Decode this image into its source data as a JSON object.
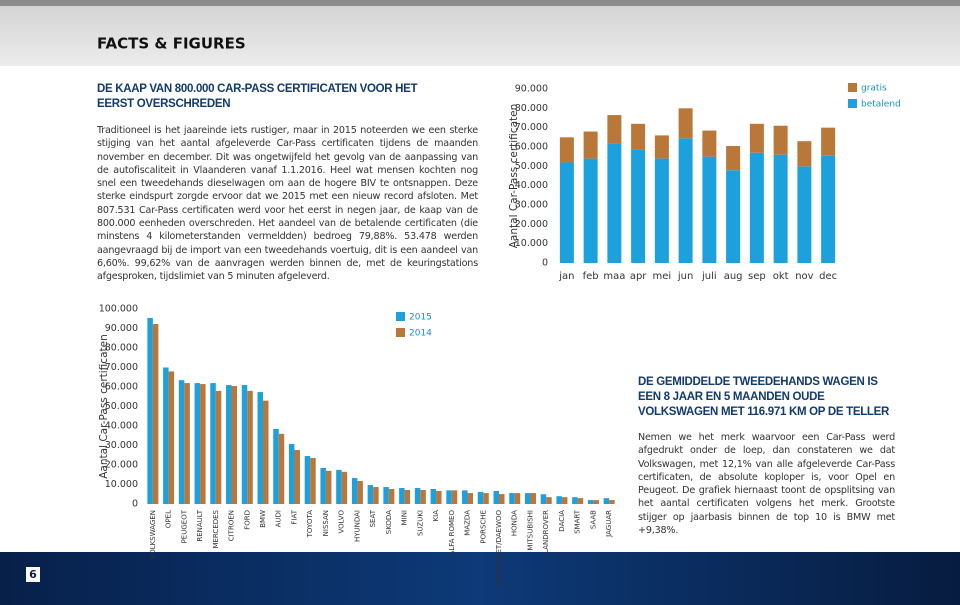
{
  "header": {
    "title": "FACTS & FIGURES"
  },
  "article1": {
    "heading": "DE KAAP VAN 800.000 CAR-PASS CERTIFICATEN VOOR HET EERST OVERSCHREDEN",
    "body": "Traditioneel is het jaareinde iets rustiger, maar in 2015 noteerden we een sterke stijging van het aantal afgeleverde Car-Pass certificaten tijdens de maanden november en december. Dit was ongetwijfeld het gevolg van de aanpassing van de autofiscaliteit in Vlaanderen vanaf 1.1.2016. Heel wat mensen kochten nog snel een tweedehands dieselwagen om aan de hogere BIV te ontsnappen. Deze sterke eindspurt zorgde ervoor dat we 2015 met een nieuw record afsloten. Met 807.531 Car-Pass certificaten werd voor het eerst in negen jaar, de kaap van de 800.000 eenheden overschreden. Het aandeel van de betalende certificaten (die minstens 4 kilometerstanden vermeldden) bedroeg 79,88%. 53.478 werden aangevraagd bij de import van een tweedehands voertuig, dit is een aandeel van 6,60%. 99,62% van de aanvragen werden binnen de, met de keuringstations afgesproken, tijdslimiet van 5 minuten afgeleverd."
  },
  "article2": {
    "heading": "DE GEMIDDELDE TWEEDEHANDS WAGEN IS EEN 8 JAAR EN 5 MAANDEN OUDE VOLKSWAGEN MET 116.971 KM OP DE TELLER",
    "body": "Nemen we het merk waarvoor een Car-Pass werd afgedrukt onder de loep, dan constateren we dat Volkswagen, met 12,1% van alle afgeleverde Car-Pass certificaten, de absolute koploper is, voor Opel en Peugeot. De grafiek hiernaast toont de opsplitsing van het aantal certificaten volgens het merk. Grootste stijger op jaarbasis binnen de top 10 is BMW met +9,38%."
  },
  "page_number": "6",
  "chart_data": [
    {
      "type": "bar",
      "stacked": true,
      "y_label": "Aantal Car-Pass certificaten",
      "categories": [
        "jan",
        "feb",
        "maa",
        "apr",
        "mei",
        "jun",
        "juli",
        "aug",
        "sep",
        "okt",
        "nov",
        "dec"
      ],
      "series": [
        {
          "name": "betalend",
          "color": "#1da1dd",
          "values": [
            52000,
            54000,
            62000,
            58500,
            54000,
            64500,
            55000,
            48000,
            57000,
            56000,
            50000,
            55500
          ]
        },
        {
          "name": "gratis",
          "color": "#b9773a",
          "values": [
            13000,
            14000,
            14500,
            13500,
            12000,
            15500,
            13500,
            12500,
            15000,
            15000,
            13000,
            14500
          ]
        }
      ],
      "ylim": [
        0,
        90000
      ],
      "yticks": [
        0,
        {
          "value": 10000,
          "label": "10.000"
        },
        {
          "value": 20000,
          "label": "20.000"
        },
        {
          "value": 30000,
          "label": "30.000"
        },
        {
          "value": 40000,
          "label": "40.000"
        },
        {
          "value": 50000,
          "label": "50.000"
        },
        {
          "value": 60000,
          "label": "60.000"
        },
        {
          "value": 70000,
          "label": "70.000"
        },
        {
          "value": 80000,
          "label": "80.000"
        },
        {
          "value": 90000,
          "label": "90.000"
        }
      ]
    },
    {
      "type": "bar",
      "stacked": false,
      "y_label": "Aantal Car-Pass certificaten",
      "categories": [
        "VOLKSWAGEN",
        "OPEL",
        "PEUGEOT",
        "RENAULT",
        "MERCEDES",
        "CITROEN",
        "FORD",
        "BMW",
        "AUDI",
        "FIAT",
        "TOYOTA",
        "NISSAN",
        "VOLVO",
        "HYUNDAI",
        "SEAT",
        "SKODA",
        "MINI",
        "SUZUKI",
        "KIA",
        "ALFA ROMEO",
        "MAZDA",
        "PORSCHE",
        "CHEVROLET/DAEWOO",
        "HONDA",
        "MITSUBISHI",
        "LANDROVER",
        "DACIA",
        "SMART",
        "SAAB",
        "JAGUAR"
      ],
      "series": [
        {
          "name": "2015",
          "color": "#1da1dd",
          "values": [
            95400,
            70000,
            63500,
            62000,
            62000,
            61000,
            61000,
            57400,
            38500,
            30800,
            24600,
            18500,
            17500,
            13300,
            9700,
            8700,
            8200,
            8200,
            7700,
            7000,
            7000,
            6200,
            6700,
            5600,
            5600,
            5000,
            4000,
            3500,
            2000,
            3000
          ]
        },
        {
          "name": "2014",
          "color": "#b9773a",
          "values": [
            92300,
            68000,
            62000,
            61500,
            58000,
            60500,
            58000,
            53000,
            36000,
            27700,
            23600,
            17000,
            16500,
            11800,
            8700,
            7700,
            7200,
            7200,
            6700,
            7000,
            5600,
            5600,
            5100,
            5600,
            5600,
            3500,
            3500,
            3000,
            2000,
            2000
          ]
        }
      ],
      "ylim": [
        0,
        100000
      ],
      "yticks": [
        0,
        {
          "value": 10000,
          "label": "10.000"
        },
        {
          "value": 20000,
          "label": "20.000"
        },
        {
          "value": 30000,
          "label": "30.000"
        },
        {
          "value": 40000,
          "label": "40.000"
        },
        {
          "value": 50000,
          "label": "50.000"
        },
        {
          "value": 60000,
          "label": "60.000"
        },
        {
          "value": 70000,
          "label": "70.000"
        },
        {
          "value": 80000,
          "label": "80.000"
        },
        {
          "value": 90000,
          "label": "90.000"
        },
        {
          "value": 100000,
          "label": "100.000"
        }
      ]
    }
  ]
}
